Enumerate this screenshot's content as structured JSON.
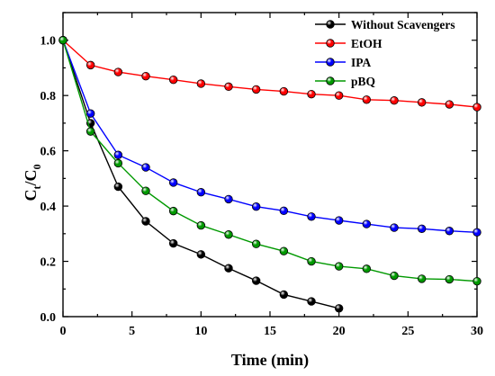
{
  "chart_data": {
    "type": "line",
    "xlabel": "Time (min)",
    "ylabel": {
      "main": "C",
      "sub1": "t",
      "sep": "/C",
      "sub2": "0"
    },
    "xlim": [
      0,
      30
    ],
    "ylim": [
      0,
      1.1
    ],
    "xticks": [
      0,
      5,
      10,
      15,
      20,
      25,
      30
    ],
    "yticks": [
      0.0,
      0.2,
      0.4,
      0.6,
      0.8,
      1.0
    ],
    "ytick_labels": [
      "0.0",
      "0.2",
      "0.4",
      "0.6",
      "0.8",
      "1.0"
    ],
    "grid": false,
    "legend_position": "top-right",
    "series": [
      {
        "name": "Without Scavengers",
        "color": "#000000",
        "x": [
          0,
          2,
          4,
          6,
          8,
          10,
          12,
          14,
          16,
          18,
          20
        ],
        "y": [
          1.0,
          0.7,
          0.47,
          0.345,
          0.265,
          0.225,
          0.175,
          0.13,
          0.08,
          0.055,
          0.03
        ]
      },
      {
        "name": "EtOH",
        "color": "#ff0000",
        "x": [
          0,
          2,
          4,
          6,
          8,
          10,
          12,
          14,
          16,
          18,
          20,
          22,
          24,
          26,
          28,
          30
        ],
        "y": [
          1.0,
          0.91,
          0.885,
          0.87,
          0.857,
          0.843,
          0.832,
          0.822,
          0.815,
          0.805,
          0.8,
          0.785,
          0.782,
          0.775,
          0.768,
          0.758
        ]
      },
      {
        "name": "IPA",
        "color": "#0000ff",
        "x": [
          0,
          2,
          4,
          6,
          8,
          10,
          12,
          14,
          16,
          18,
          20,
          22,
          24,
          26,
          28,
          30
        ],
        "y": [
          1.0,
          0.735,
          0.585,
          0.54,
          0.485,
          0.45,
          0.425,
          0.398,
          0.383,
          0.362,
          0.348,
          0.335,
          0.322,
          0.318,
          0.31,
          0.305
        ]
      },
      {
        "name": "pBQ",
        "color": "#009900",
        "x": [
          0,
          2,
          4,
          6,
          8,
          10,
          12,
          14,
          16,
          18,
          20,
          22,
          24,
          26,
          28,
          30
        ],
        "y": [
          1.0,
          0.67,
          0.555,
          0.455,
          0.382,
          0.33,
          0.297,
          0.263,
          0.237,
          0.2,
          0.182,
          0.173,
          0.148,
          0.137,
          0.135,
          0.128
        ]
      }
    ]
  }
}
